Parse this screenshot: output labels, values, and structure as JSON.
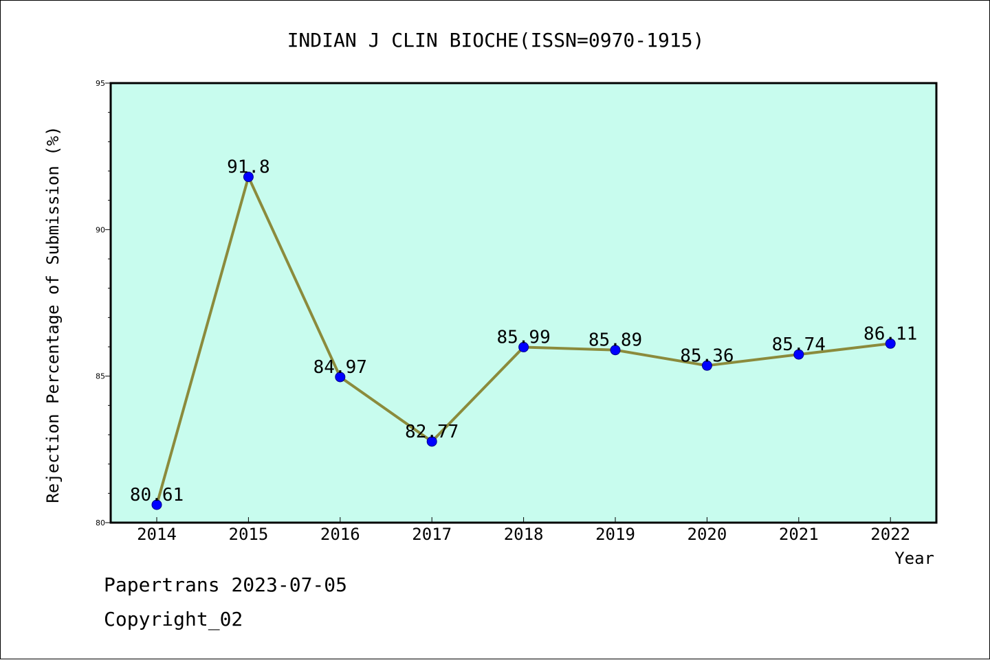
{
  "chart_data": {
    "type": "line",
    "title": "INDIAN J CLIN BIOCHE(ISSN=0970-1915)",
    "xlabel": "Year",
    "ylabel": "Rejection Percentage of Submission (%)",
    "categories": [
      "2014",
      "2015",
      "2016",
      "2017",
      "2018",
      "2019",
      "2020",
      "2021",
      "2022"
    ],
    "values": [
      80.61,
      91.8,
      84.97,
      82.77,
      85.99,
      85.89,
      85.36,
      85.74,
      86.11
    ],
    "data_labels": [
      "80.61",
      "91.8",
      "84.97",
      "82.77",
      "85.99",
      "85.89",
      "85.36",
      "85.74",
      "86.11"
    ],
    "ylim": [
      80,
      95
    ],
    "yticks": [
      "80",
      "85",
      "90",
      "95"
    ],
    "grid": false,
    "legend": "none",
    "colors": {
      "plot_background": "#c8fcee",
      "line": "#8b8b3c",
      "marker": "#0000ff"
    }
  },
  "footer": {
    "source": "Papertrans 2023-07-05",
    "copyright": "Copyright_02"
  }
}
